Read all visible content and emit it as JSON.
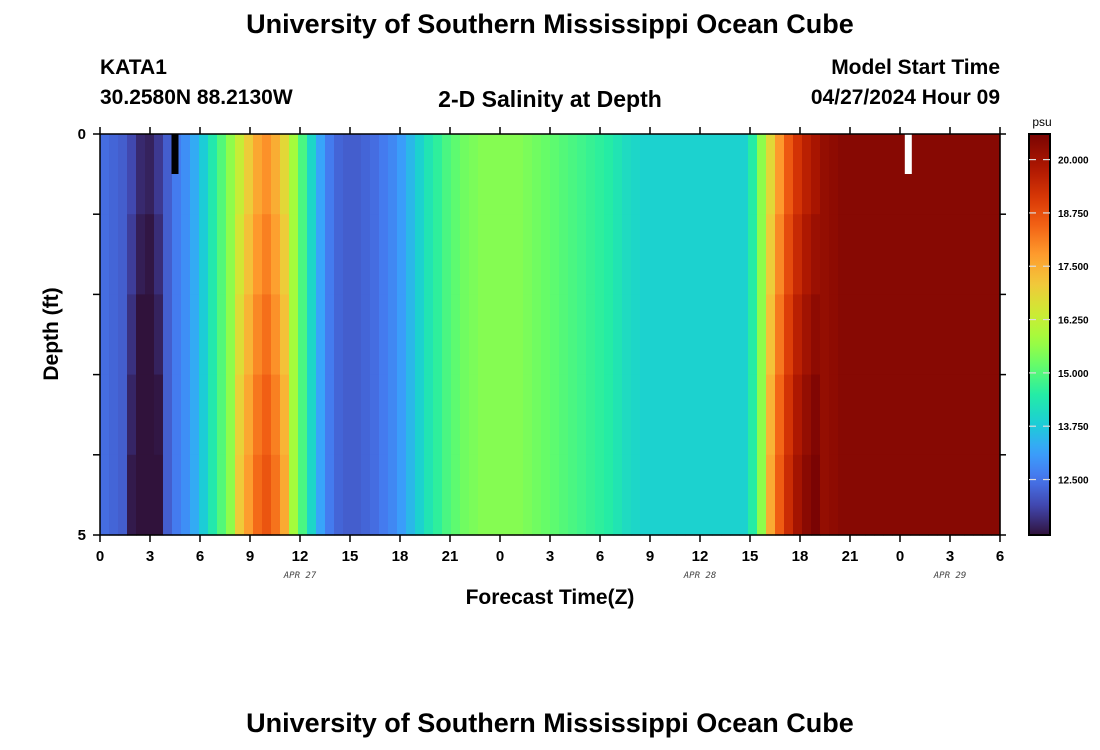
{
  "header": {
    "title": "University of Southern Mississippi Ocean Cube",
    "station": "KATA1",
    "coords": "30.2580N  88.2130W",
    "plot_title": "2-D Salinity at Depth",
    "model_start_label": "Model Start Time",
    "model_start_value": "04/27/2024 Hour 09",
    "footer_title": "University of Southern Mississippi Ocean Cube"
  },
  "chart_data": {
    "type": "heatmap",
    "title": "2-D Salinity at Depth",
    "xlabel": "Forecast Time(Z)",
    "ylabel": "Depth (ft)",
    "x_hours": [
      0,
      54
    ],
    "x_ticks": [
      "0",
      "3",
      "6",
      "9",
      "12",
      "15",
      "18",
      "21",
      "0",
      "3",
      "6",
      "9",
      "12",
      "15",
      "18",
      "21",
      "0",
      "3",
      "6"
    ],
    "x_tick_hours": [
      0,
      3,
      6,
      9,
      12,
      15,
      18,
      21,
      24,
      27,
      30,
      33,
      36,
      39,
      42,
      45,
      48,
      51,
      54
    ],
    "date_labels": [
      {
        "text": "APR 27",
        "hour": 12
      },
      {
        "text": "APR 28",
        "hour": 36
      },
      {
        "text": "APR 29",
        "hour": 51
      }
    ],
    "y_range": [
      0,
      5
    ],
    "y_ticks": [
      "0",
      "5"
    ],
    "y_levels": 5,
    "colorbar": {
      "unit": "psu",
      "min": 11.2,
      "max": 20.6,
      "ticks": [
        "12.500",
        "13.750",
        "15.000",
        "16.250",
        "17.500",
        "18.750",
        "20.000"
      ],
      "tick_values": [
        12.5,
        13.75,
        15.0,
        16.25,
        17.5,
        18.75,
        20.0
      ]
    },
    "surface_salinity": [
      12.4,
      12.3,
      12.2,
      11.9,
      11.5,
      11.4,
      11.7,
      12.2,
      12.6,
      12.9,
      13.3,
      13.8,
      14.4,
      15.0,
      15.6,
      16.3,
      17.0,
      17.6,
      17.9,
      17.5,
      16.8,
      15.8,
      14.9,
      14.0,
      13.2,
      12.6,
      12.3,
      12.2,
      12.2,
      12.3,
      12.4,
      12.6,
      12.8,
      13.1,
      13.5,
      13.9,
      14.3,
      14.6,
      14.9,
      15.1,
      15.3,
      15.4,
      15.5,
      15.5,
      15.5,
      15.5,
      15.5,
      15.4,
      15.3,
      15.2,
      15.1,
      15.0,
      14.9,
      14.8,
      14.7,
      14.6,
      14.5,
      14.3,
      14.1,
      14.0,
      13.9,
      13.9,
      13.9,
      13.9,
      13.9,
      13.9,
      13.9,
      13.9,
      13.9,
      13.9,
      13.9,
      13.9,
      14.5,
      15.6,
      16.8,
      17.8,
      18.6,
      19.2,
      19.6,
      19.9,
      20.2,
      20.3,
      20.4,
      20.4,
      20.4,
      20.4,
      20.4,
      20.4,
      20.4,
      20.4,
      20.4,
      20.4,
      20.4,
      20.4,
      20.4,
      20.4,
      20.4,
      20.4,
      20.4,
      20.4
    ],
    "depth_offset": [
      0,
      0.2,
      0.4,
      0.6,
      0.75
    ],
    "white_markers_hour": [
      4.5,
      48.5
    ],
    "marker_colors": [
      "#000000",
      "#ffffff"
    ]
  }
}
